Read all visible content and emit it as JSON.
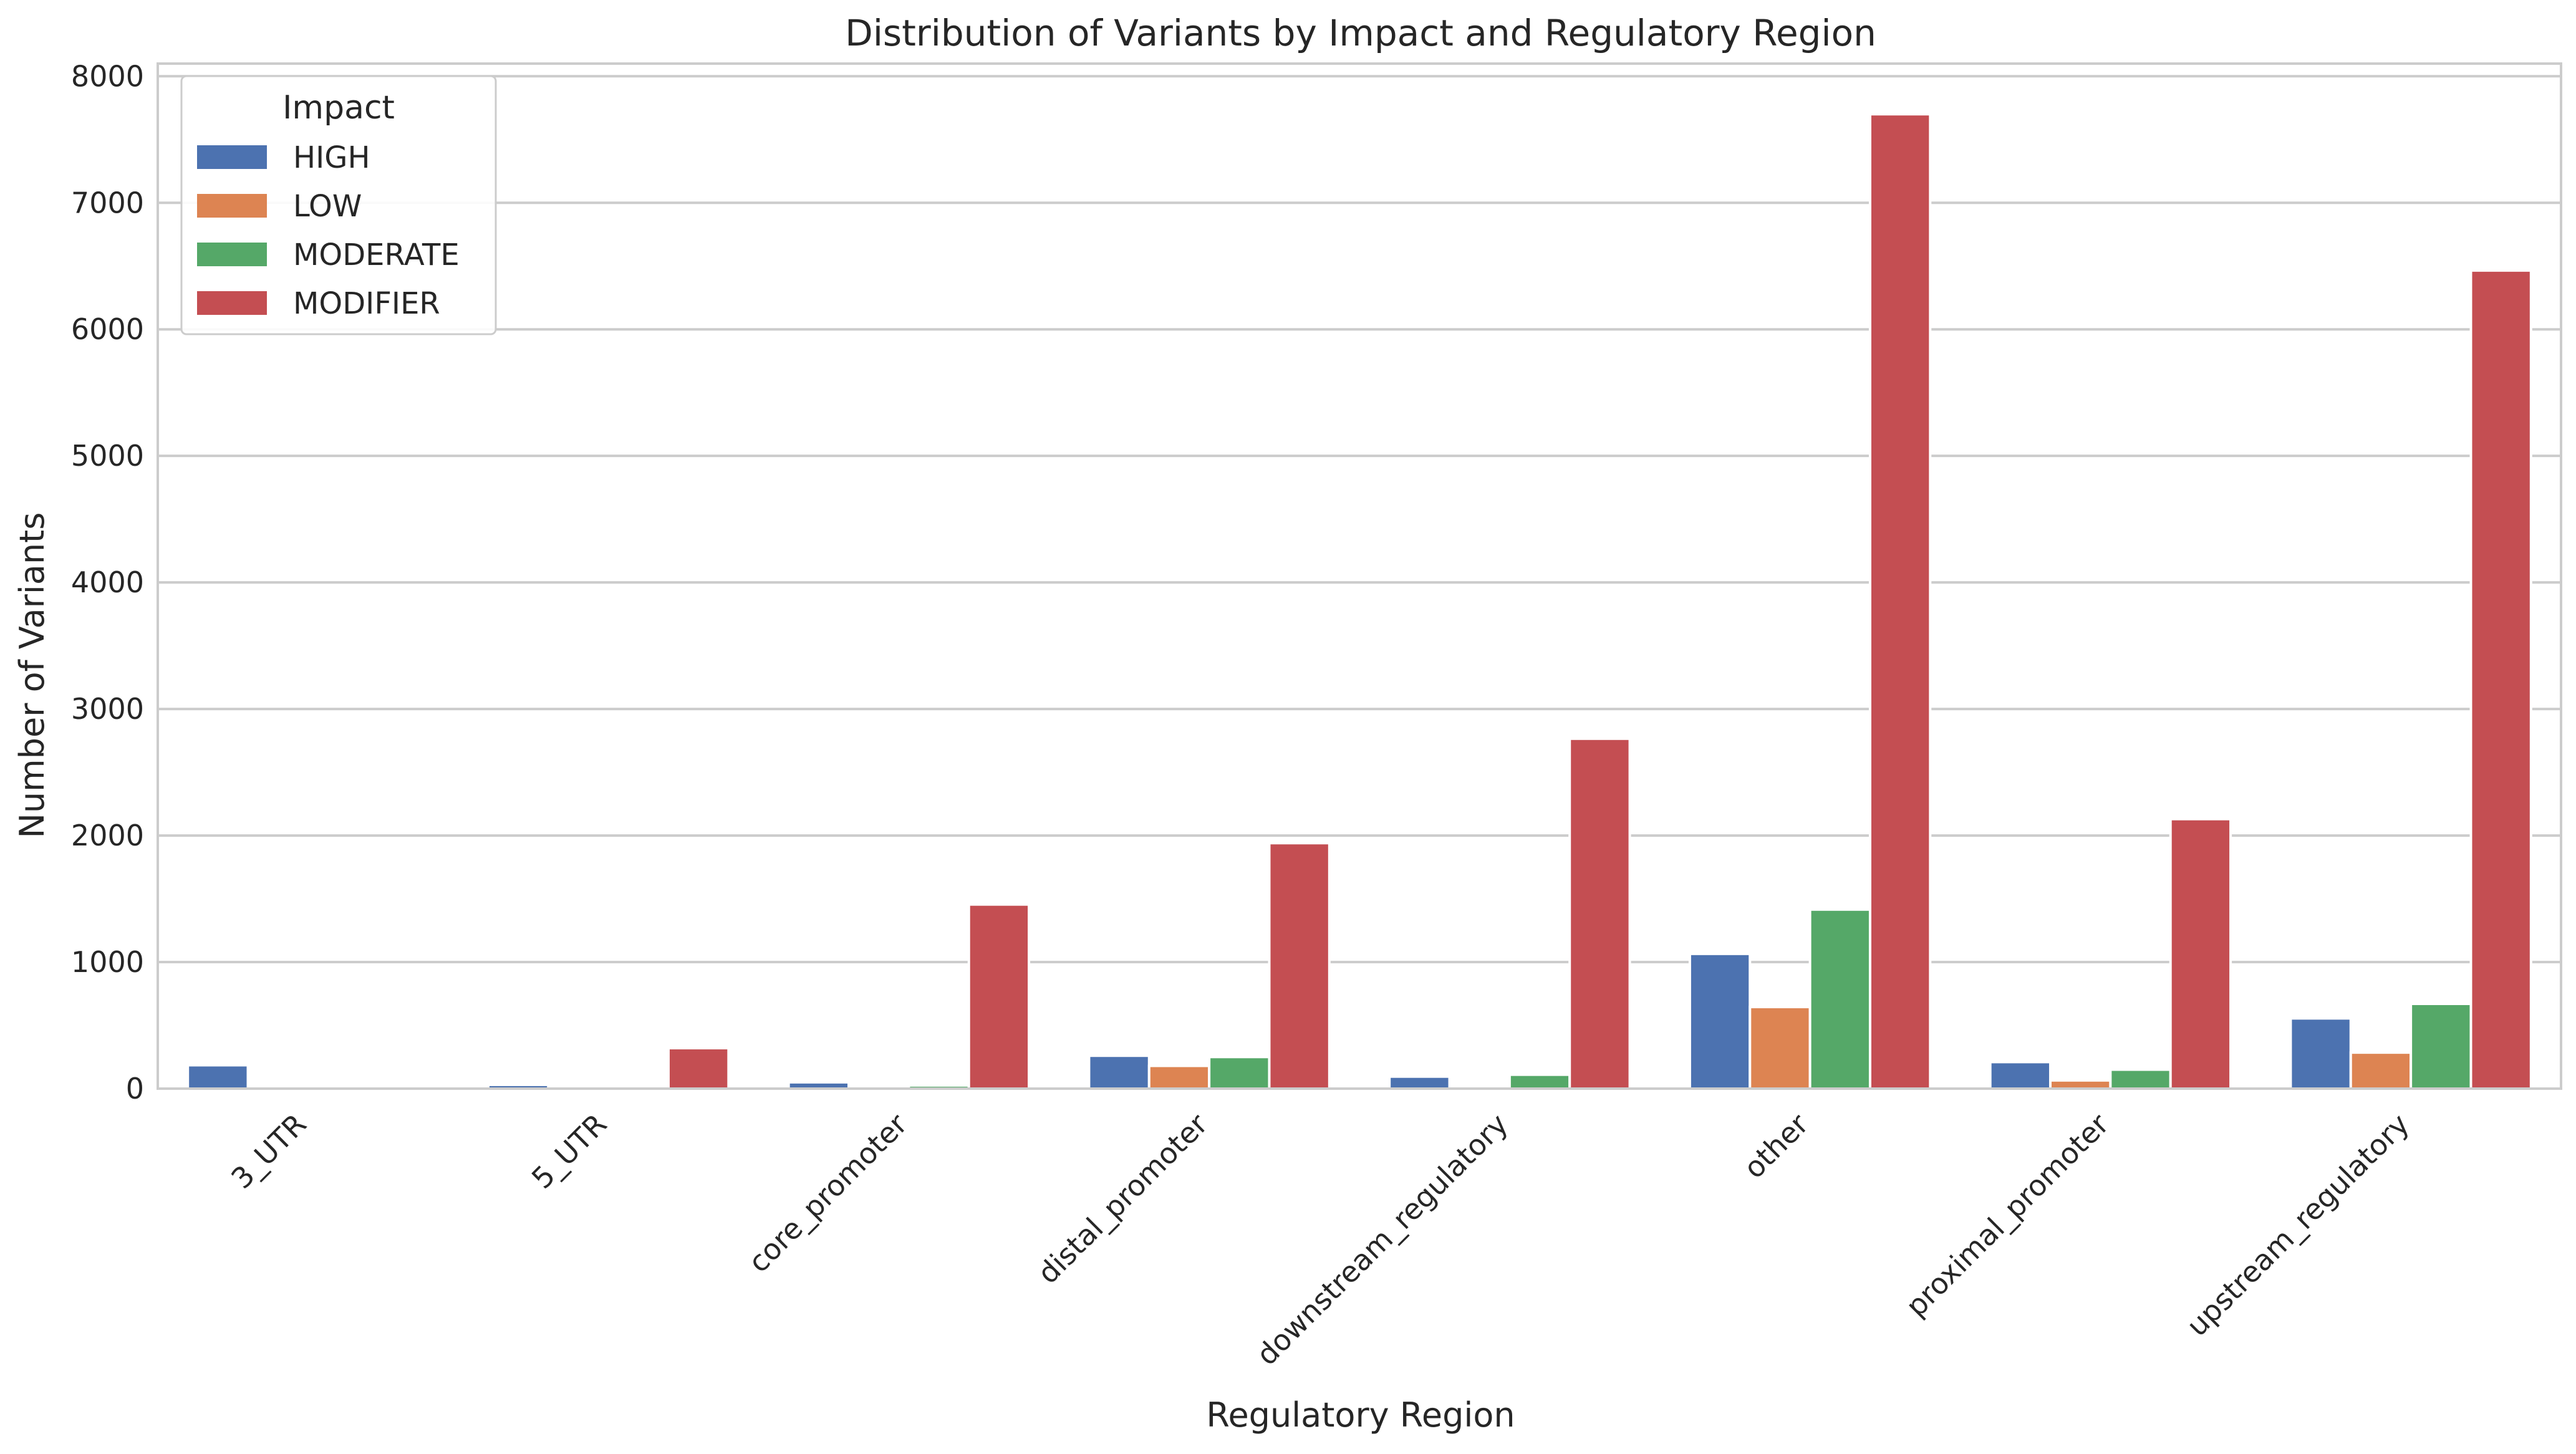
{
  "chart_data": {
    "type": "bar",
    "title": "Distribution of Variants by Impact and Regulatory Region",
    "xlabel": "Regulatory Region",
    "ylabel": "Number of Variants",
    "ylim": [
      0,
      8100
    ],
    "yticks": [
      0,
      1000,
      2000,
      3000,
      4000,
      5000,
      6000,
      7000,
      8000
    ],
    "grid": "horizontal",
    "legend_title": "Impact",
    "legend_position": "top-left",
    "categories": [
      "3_UTR",
      "5_UTR",
      "core_promoter",
      "distal_promoter",
      "downstream_regulatory",
      "other",
      "proximal_promoter",
      "upstream_regulatory"
    ],
    "series": [
      {
        "name": "HIGH",
        "color": "#4c72b0",
        "values": [
          185,
          30,
          50,
          260,
          95,
          1065,
          210,
          555
        ]
      },
      {
        "name": "LOW",
        "color": "#dd8452",
        "values": [
          2,
          5,
          5,
          180,
          5,
          645,
          65,
          285
        ]
      },
      {
        "name": "MODERATE",
        "color": "#55a868",
        "values": [
          3,
          15,
          25,
          250,
          110,
          1415,
          150,
          670
        ]
      },
      {
        "name": "MODIFIER",
        "color": "#c44e52",
        "values": [
          5,
          320,
          1455,
          1940,
          2765,
          7700,
          2130,
          6465
        ]
      }
    ]
  }
}
